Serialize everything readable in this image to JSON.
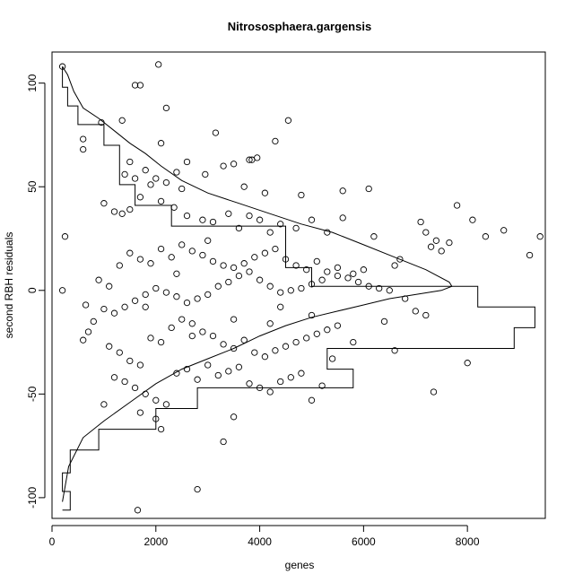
{
  "chart_data": {
    "type": "scatter",
    "title": "Nitrososphaera.gargensis",
    "xlabel": "genes",
    "ylabel": "second RBH residuals",
    "xlim": [
      0,
      9500
    ],
    "ylim": [
      -110,
      115
    ],
    "xticks": [
      0,
      2000,
      4000,
      6000,
      8000
    ],
    "yticks": [
      -100,
      -50,
      0,
      50,
      100
    ],
    "grid": false,
    "point_style": "open-circle",
    "colors": {
      "points": "#000000",
      "lines": "#000000",
      "background": "#ffffff"
    },
    "points": [
      [
        200,
        108
      ],
      [
        2050,
        109
      ],
      [
        1600,
        99
      ],
      [
        1700,
        99
      ],
      [
        2200,
        88
      ],
      [
        1350,
        82
      ],
      [
        4550,
        82
      ],
      [
        950,
        81
      ],
      [
        3150,
        76
      ],
      [
        4300,
        72
      ],
      [
        2100,
        71
      ],
      [
        600,
        73
      ],
      [
        600,
        68
      ],
      [
        1500,
        62
      ],
      [
        3800,
        63
      ],
      [
        3950,
        64
      ],
      [
        3500,
        61
      ],
      [
        2600,
        62
      ],
      [
        1800,
        58
      ],
      [
        2400,
        57
      ],
      [
        2950,
        56
      ],
      [
        3300,
        60
      ],
      [
        3850,
        63
      ],
      [
        1400,
        56
      ],
      [
        1600,
        54
      ],
      [
        2000,
        54
      ],
      [
        2200,
        52
      ],
      [
        1900,
        51
      ],
      [
        2500,
        49
      ],
      [
        3700,
        50
      ],
      [
        4100,
        47
      ],
      [
        4800,
        46
      ],
      [
        5600,
        48
      ],
      [
        6100,
        49
      ],
      [
        1000,
        42
      ],
      [
        1200,
        38
      ],
      [
        1350,
        37
      ],
      [
        1500,
        39
      ],
      [
        1700,
        45
      ],
      [
        2100,
        43
      ],
      [
        2350,
        40
      ],
      [
        2600,
        36
      ],
      [
        2900,
        34
      ],
      [
        3100,
        33
      ],
      [
        3400,
        37
      ],
      [
        3600,
        30
      ],
      [
        3800,
        36
      ],
      [
        4000,
        34
      ],
      [
        4200,
        28
      ],
      [
        4400,
        32
      ],
      [
        4700,
        30
      ],
      [
        5000,
        34
      ],
      [
        5300,
        28
      ],
      [
        5600,
        35
      ],
      [
        6200,
        26
      ],
      [
        7100,
        33
      ],
      [
        7200,
        28
      ],
      [
        7400,
        24
      ],
      [
        7650,
        23
      ],
      [
        7800,
        41
      ],
      [
        8100,
        34
      ],
      [
        8350,
        26
      ],
      [
        8700,
        29
      ],
      [
        9200,
        17
      ],
      [
        9400,
        26
      ],
      [
        7300,
        21
      ],
      [
        7500,
        19
      ],
      [
        6700,
        15
      ],
      [
        6600,
        12
      ],
      [
        6000,
        10
      ],
      [
        5800,
        8
      ],
      [
        5500,
        7
      ],
      [
        5200,
        5
      ],
      [
        5000,
        3
      ],
      [
        4800,
        1
      ],
      [
        4600,
        0
      ],
      [
        4400,
        -1
      ],
      [
        4200,
        2
      ],
      [
        4000,
        5
      ],
      [
        3800,
        9
      ],
      [
        3600,
        7
      ],
      [
        3400,
        4
      ],
      [
        3200,
        2
      ],
      [
        3000,
        -2
      ],
      [
        2800,
        -4
      ],
      [
        2600,
        -6
      ],
      [
        2400,
        -3
      ],
      [
        2200,
        -1
      ],
      [
        2000,
        1
      ],
      [
        1800,
        -2
      ],
      [
        1600,
        -5
      ],
      [
        1400,
        -8
      ],
      [
        1200,
        -11
      ],
      [
        1000,
        -9
      ],
      [
        800,
        -15
      ],
      [
        700,
        -20
      ],
      [
        600,
        -24
      ],
      [
        650,
        -7
      ],
      [
        900,
        5
      ],
      [
        1100,
        2
      ],
      [
        1300,
        12
      ],
      [
        1500,
        18
      ],
      [
        1700,
        15
      ],
      [
        1900,
        13
      ],
      [
        2100,
        20
      ],
      [
        2300,
        16
      ],
      [
        2500,
        22
      ],
      [
        2700,
        19
      ],
      [
        2900,
        17
      ],
      [
        3100,
        14
      ],
      [
        3300,
        12
      ],
      [
        3500,
        11
      ],
      [
        3700,
        13
      ],
      [
        3900,
        16
      ],
      [
        4100,
        18
      ],
      [
        4300,
        20
      ],
      [
        4500,
        15
      ],
      [
        4700,
        12
      ],
      [
        4900,
        10
      ],
      [
        5100,
        14
      ],
      [
        5300,
        9
      ],
      [
        5500,
        11
      ],
      [
        5700,
        6
      ],
      [
        5900,
        4
      ],
      [
        6100,
        2
      ],
      [
        6300,
        1
      ],
      [
        6500,
        0
      ],
      [
        6800,
        -4
      ],
      [
        7200,
        -12
      ],
      [
        1100,
        -27
      ],
      [
        1300,
        -30
      ],
      [
        1500,
        -34
      ],
      [
        1700,
        -36
      ],
      [
        1900,
        -23
      ],
      [
        2100,
        -25
      ],
      [
        2300,
        -18
      ],
      [
        2500,
        -14
      ],
      [
        2700,
        -16
      ],
      [
        2900,
        -20
      ],
      [
        3100,
        -22
      ],
      [
        3300,
        -26
      ],
      [
        3500,
        -28
      ],
      [
        3700,
        -24
      ],
      [
        3900,
        -30
      ],
      [
        4100,
        -32
      ],
      [
        4300,
        -29
      ],
      [
        4500,
        -27
      ],
      [
        4700,
        -25
      ],
      [
        4900,
        -23
      ],
      [
        5100,
        -21
      ],
      [
        5300,
        -19
      ],
      [
        5500,
        -17
      ],
      [
        5800,
        -25
      ],
      [
        6400,
        -15
      ],
      [
        6600,
        -29
      ],
      [
        7000,
        -10
      ],
      [
        1200,
        -42
      ],
      [
        1400,
        -44
      ],
      [
        1600,
        -47
      ],
      [
        1800,
        -50
      ],
      [
        2000,
        -53
      ],
      [
        2200,
        -55
      ],
      [
        2400,
        -40
      ],
      [
        2600,
        -38
      ],
      [
        2800,
        -43
      ],
      [
        3000,
        -36
      ],
      [
        3200,
        -41
      ],
      [
        3400,
        -39
      ],
      [
        3600,
        -37
      ],
      [
        3800,
        -45
      ],
      [
        4000,
        -47
      ],
      [
        4200,
        -49
      ],
      [
        4400,
        -44
      ],
      [
        4600,
        -42
      ],
      [
        4800,
        -40
      ],
      [
        5000,
        -53
      ],
      [
        5200,
        -46
      ],
      [
        5400,
        -33
      ],
      [
        1000,
        -55
      ],
      [
        1700,
        -59
      ],
      [
        2000,
        -62
      ],
      [
        2100,
        -67
      ],
      [
        3300,
        -73
      ],
      [
        3500,
        -61
      ],
      [
        2800,
        -96
      ],
      [
        1650,
        -106
      ],
      [
        7350,
        -49
      ],
      [
        8000,
        -35
      ],
      [
        200,
        0
      ],
      [
        250,
        26
      ],
      [
        1800,
        -8
      ],
      [
        2400,
        8
      ],
      [
        3000,
        24
      ],
      [
        4400,
        -8
      ],
      [
        5000,
        -12
      ],
      [
        2700,
        -22
      ],
      [
        3500,
        -14
      ],
      [
        4200,
        -16
      ]
    ],
    "curve": [
      [
        200,
        -102
      ],
      [
        320,
        -85
      ],
      [
        600,
        -71
      ],
      [
        1000,
        -63
      ],
      [
        1500,
        -54
      ],
      [
        2000,
        -45
      ],
      [
        2500,
        -38
      ],
      [
        3000,
        -33
      ],
      [
        3500,
        -28
      ],
      [
        4000,
        -22
      ],
      [
        4500,
        -17
      ],
      [
        5000,
        -13
      ],
      [
        5500,
        -10
      ],
      [
        6000,
        -7
      ],
      [
        6500,
        -4
      ],
      [
        7000,
        -2
      ],
      [
        7500,
        0
      ],
      [
        7700,
        2
      ],
      [
        7650,
        4
      ],
      [
        7200,
        10
      ],
      [
        6600,
        16
      ],
      [
        6000,
        22
      ],
      [
        5400,
        28
      ],
      [
        4800,
        32
      ],
      [
        4200,
        37
      ],
      [
        3600,
        42
      ],
      [
        3000,
        47
      ],
      [
        2500,
        53
      ],
      [
        2100,
        60
      ],
      [
        1800,
        66
      ],
      [
        1500,
        71
      ],
      [
        1200,
        77
      ],
      [
        900,
        83
      ],
      [
        600,
        88
      ],
      [
        420,
        96
      ],
      [
        300,
        104
      ],
      [
        200,
        108
      ]
    ],
    "step": [
      [
        200,
        -106
      ],
      [
        350,
        -106
      ],
      [
        350,
        -97
      ],
      [
        200,
        -97
      ],
      [
        200,
        -88
      ],
      [
        350,
        -88
      ],
      [
        350,
        -77
      ],
      [
        900,
        -77
      ],
      [
        900,
        -67
      ],
      [
        2000,
        -67
      ],
      [
        2000,
        -57
      ],
      [
        2800,
        -57
      ],
      [
        2800,
        -47
      ],
      [
        5800,
        -47
      ],
      [
        5800,
        -38
      ],
      [
        5300,
        -38
      ],
      [
        5300,
        -28
      ],
      [
        8900,
        -28
      ],
      [
        8900,
        -18
      ],
      [
        9300,
        -18
      ],
      [
        9300,
        -8
      ],
      [
        8200,
        -8
      ],
      [
        8200,
        2
      ],
      [
        5000,
        2
      ],
      [
        5000,
        11
      ],
      [
        4500,
        11
      ],
      [
        4500,
        21
      ],
      [
        4500,
        21
      ],
      [
        4500,
        31
      ],
      [
        2300,
        31
      ],
      [
        2300,
        41
      ],
      [
        1600,
        41
      ],
      [
        1600,
        51
      ],
      [
        1300,
        51
      ],
      [
        1300,
        61
      ],
      [
        1300,
        61
      ],
      [
        1300,
        70
      ],
      [
        1000,
        70
      ],
      [
        1000,
        80
      ],
      [
        500,
        80
      ],
      [
        500,
        89
      ],
      [
        300,
        89
      ],
      [
        300,
        98
      ],
      [
        200,
        98
      ],
      [
        200,
        108
      ]
    ]
  }
}
